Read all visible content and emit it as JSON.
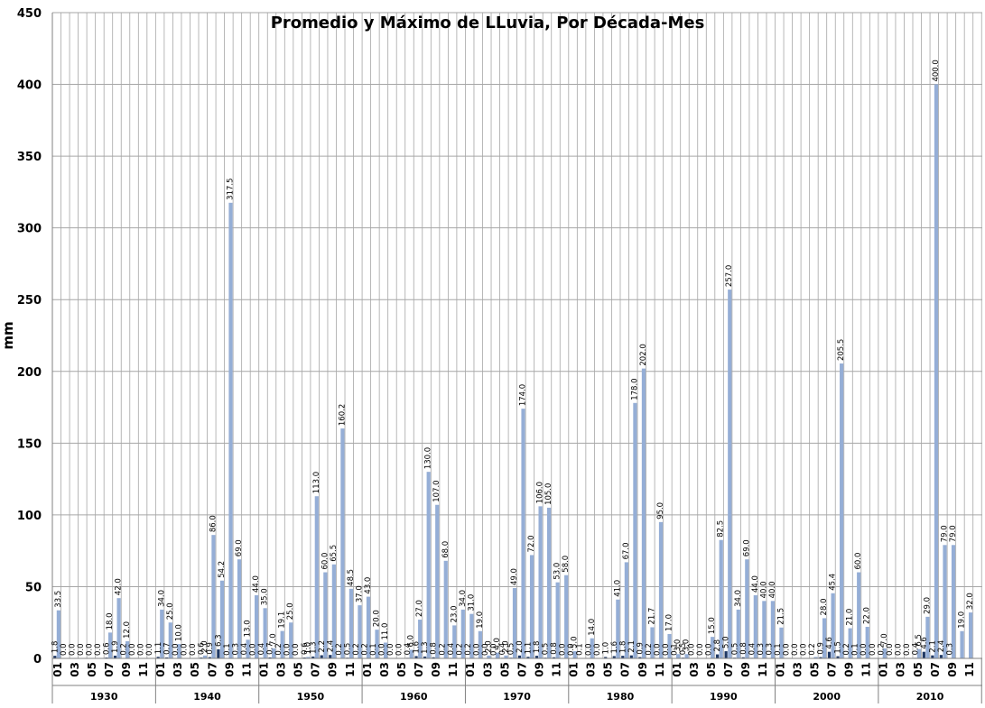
{
  "chart_data": {
    "type": "bar",
    "title": "Promedio y Máximo de LLuvia, Por Década-Mes",
    "ylabel": "mm",
    "xlabel": "",
    "ylim": [
      0,
      450
    ],
    "yticks": [
      0,
      50,
      100,
      150,
      200,
      250,
      300,
      350,
      400,
      450
    ],
    "grid": true,
    "colors": {
      "max": "#95aed6",
      "avg": "#1f3864",
      "grid": "#a6a6a6"
    },
    "month_ticks": [
      "01",
      "03",
      "05",
      "07",
      "09",
      "11"
    ],
    "decades": [
      {
        "name": "1930",
        "avg": [
          1.8,
          0.0,
          0.0,
          0.0,
          0.0,
          0.0,
          0.6,
          1.9,
          0.2,
          0.0,
          0.0,
          0.0
        ],
        "max": [
          33.5,
          0.0,
          0.0,
          0.0,
          0.0,
          0.0,
          18.0,
          42.0,
          12.0,
          0.0,
          0.0,
          0.0
        ],
        "avg_labels": [
          "1.8",
          "0.0",
          "0.0",
          "0.0",
          "0.0",
          "0.0",
          "0.6",
          "1.9",
          "0.2",
          "0.0",
          "0.0",
          "0.0"
        ],
        "max_labels": [
          "33.5",
          "",
          "",
          "",
          "",
          "",
          "18.0",
          "42.0",
          "12.0",
          "",
          "",
          ""
        ]
      },
      {
        "name": "1940",
        "avg": [
          1.1,
          0.7,
          0.0,
          0.0,
          0.0,
          0.6,
          0.9,
          6.3,
          0.1,
          0.3,
          0.4,
          0.0
        ],
        "max": [
          34.0,
          25.0,
          10.0,
          0.0,
          0.0,
          2.0,
          86.0,
          54.2,
          317.5,
          69.0,
          13.0,
          44.0
        ],
        "avg_labels": [
          "1.1",
          "0.7",
          "0.0",
          "0.0",
          "0.0",
          "0.6",
          "0.9",
          "6.3",
          "0.1",
          "0.3",
          "0.4",
          "0.0"
        ],
        "max_labels": [
          "34.0",
          "25.0",
          "10.0",
          "",
          "",
          "2.0",
          "86.0",
          "54.2",
          "317.5",
          "69.0",
          "13.0",
          "44.0"
        ]
      },
      {
        "name": "1950",
        "avg": [
          0.4,
          0.7,
          0.2,
          0.0,
          0.0,
          0.6,
          1.3,
          2.2,
          2.4,
          0.2,
          0.5,
          0.2
        ],
        "max": [
          35.0,
          7.0,
          19.1,
          25.0,
          0.0,
          1.0,
          113.0,
          60.0,
          65.5,
          160.2,
          48.5,
          37.0
        ],
        "avg_labels": [
          "0.4",
          "0.7",
          "0.2",
          "0.0",
          "0.0",
          "0.6",
          "1.3",
          "2.2",
          "2.4",
          "0.2",
          "0.5",
          "0.2"
        ],
        "max_labels": [
          "35.0",
          "7.0",
          "19.1",
          "25.0",
          "",
          "1.0",
          "113.0",
          "60.0",
          "65.5",
          "160.2",
          "48.5",
          "37.0"
        ]
      },
      {
        "name": "1960",
        "avg": [
          0.2,
          0.1,
          0.0,
          0.0,
          0.0,
          0.4,
          1.6,
          1.3,
          0.8,
          0.2,
          0.4,
          0.2
        ],
        "max": [
          43.0,
          20.0,
          11.0,
          0.0,
          0.0,
          6.0,
          27.0,
          130.0,
          107.0,
          68.0,
          23.0,
          34.0
        ],
        "avg_labels": [
          "0.2",
          "0.1",
          "0.0",
          "0.0",
          "0.0",
          "0.4",
          "1.6",
          "1.3",
          "0.8",
          "0.2",
          "0.4",
          "0.2"
        ],
        "max_labels": [
          "43.0",
          "20.0",
          "11.0",
          "",
          "",
          "6.0",
          "27.0",
          "130.0",
          "107.0",
          "68.0",
          "23.0",
          "34.0"
        ]
      },
      {
        "name": "1970",
        "avg": [
          0.2,
          0.0,
          0.0,
          0.0,
          0.4,
          0.5,
          2.0,
          1.1,
          1.8,
          0.5,
          0.8,
          0.0
        ],
        "max": [
          31.0,
          19.0,
          2.0,
          4.0,
          2.0,
          49.0,
          174.0,
          72.0,
          106.0,
          105.0,
          53.0,
          58.0
        ],
        "avg_labels": [
          "0.2",
          "0.0",
          "0.0",
          "0.0",
          "0.4",
          "0.5",
          "2.0",
          "1.1",
          "1.8",
          "0.5",
          "0.8",
          "0.0"
        ],
        "max_labels": [
          "31.0",
          "19.0",
          "2.0",
          "4.0",
          "2.0",
          "49.0",
          "174.0",
          "72.0",
          "106.0",
          "105.0",
          "53.0",
          "58.0"
        ]
      },
      {
        "name": "1980",
        "avg": [
          0.0,
          0.1,
          0.0,
          0.0,
          1.0,
          1.6,
          1.8,
          2.1,
          0.9,
          0.2,
          0.0,
          0.0
        ],
        "max": [
          5.0,
          0.0,
          14.0,
          0.0,
          0.0,
          41.0,
          67.0,
          178.0,
          202.0,
          21.7,
          95.0,
          17.0
        ],
        "avg_labels": [
          "0.0",
          "0.1",
          "0.0",
          "0.0",
          "1.0",
          "1.6",
          "1.8",
          "2.1",
          "0.9",
          "0.2",
          "0.0",
          "0.0"
        ],
        "max_labels": [
          "5.0",
          "",
          "14.0",
          "",
          "",
          "41.0",
          "67.0",
          "178.0",
          "202.0",
          "21.7",
          "95.0",
          "17.0"
        ]
      },
      {
        "name": "1990",
        "avg": [
          0.1,
          0.5,
          0.0,
          0.0,
          0.0,
          2.8,
          5.0,
          0.5,
          0.8,
          0.4,
          0.3,
          0.3
        ],
        "max": [
          3.0,
          3.0,
          0.0,
          0.0,
          15.0,
          82.5,
          257.0,
          34.0,
          69.0,
          44.0,
          40.0,
          40.0
        ],
        "avg_labels": [
          "0.1",
          "0.5",
          "0.0",
          "0.0",
          "0.0",
          "2.8",
          "5.0",
          "0.5",
          "0.8",
          "0.4",
          "0.3",
          "0.3"
        ],
        "max_labels": [
          "3.0",
          "3.0",
          "",
          "",
          "15.0",
          "82.5",
          "257.0",
          "34.0",
          "69.0",
          "44.0",
          "40.0",
          "40.0"
        ]
      },
      {
        "name": "2000",
        "avg": [
          0.1,
          0.0,
          0.0,
          0.0,
          0.2,
          0.9,
          4.6,
          1.5,
          0.2,
          0.1,
          0.0,
          0.0
        ],
        "max": [
          21.5,
          0.0,
          0.0,
          0.0,
          1.0,
          28.0,
          45.4,
          205.5,
          21.0,
          60.0,
          22.0,
          0.0
        ],
        "avg_labels": [
          "0.1",
          "0.0",
          "0.0",
          "0.0",
          "0.2",
          "0.9",
          "4.6",
          "1.5",
          "0.2",
          "0.1",
          "0.0",
          "0.0"
        ],
        "max_labels": [
          "21.5",
          "",
          "",
          "",
          "",
          "28.0",
          "45.4",
          "205.5",
          "21.0",
          "60.0",
          "22.0",
          ""
        ]
      },
      {
        "name": "2010",
        "avg": [
          0.2,
          0.0,
          0.0,
          0.0,
          0.4,
          4.6,
          2.1,
          2.4,
          0.3,
          0.0,
          0.0,
          0.0
        ],
        "max": [
          7.0,
          0.0,
          0.0,
          0.0,
          6.5,
          29.0,
          400.0,
          79.0,
          79.0,
          19.0,
          32.0,
          0.0
        ],
        "avg_labels": [
          "0.2",
          "0.0",
          "0.0",
          "0.0",
          "0.4",
          "4.6",
          "2.1",
          "2.4",
          "0.3",
          "",
          "",
          ""
        ],
        "max_labels": [
          "7.0",
          "",
          "",
          "",
          "6.5",
          "29.0",
          "400.0",
          "79.0",
          "79.0",
          "19.0",
          "32.0",
          ""
        ]
      }
    ]
  }
}
